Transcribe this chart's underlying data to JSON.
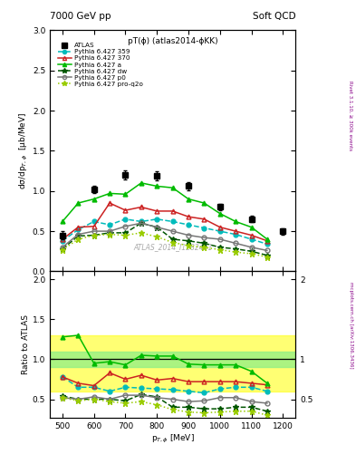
{
  "title_top_left": "7000 GeV pp",
  "title_top_right": "Soft QCD",
  "plot_title": "pT(ϕ) (atlas2014-ϕKK)",
  "watermark": "ATLAS_2014_I1282441",
  "right_label_top": "Rivet 3.1.10, ≥ 300k events",
  "right_label_bot": "mcplots.cern.ch [arXiv:1306.3436]",
  "ylabel_main": "dσ/dp$_{T,ϕ}$  [μb/MeV]",
  "ylabel_ratio": "Ratio to ATLAS",
  "xlabel": "p$_{T,ϕ}$ [MeV]",
  "atlas_x": [
    500,
    600,
    700,
    800,
    900,
    1000,
    1100,
    1200
  ],
  "atlas_y": [
    0.45,
    1.02,
    1.2,
    1.19,
    1.06,
    0.8,
    0.65,
    0.5
  ],
  "atlas_yerr": [
    0.05,
    0.05,
    0.06,
    0.06,
    0.05,
    0.04,
    0.04,
    0.04
  ],
  "p359_x": [
    500,
    550,
    600,
    650,
    700,
    750,
    800,
    850,
    900,
    950,
    1000,
    1050,
    1100,
    1150
  ],
  "p359_y": [
    0.38,
    0.52,
    0.62,
    0.58,
    0.65,
    0.62,
    0.65,
    0.62,
    0.58,
    0.54,
    0.5,
    0.46,
    0.4,
    0.34
  ],
  "p370_x": [
    500,
    550,
    600,
    650,
    700,
    750,
    800,
    850,
    900,
    950,
    1000,
    1050,
    1100,
    1150
  ],
  "p370_y": [
    0.4,
    0.55,
    0.56,
    0.85,
    0.76,
    0.8,
    0.75,
    0.75,
    0.68,
    0.65,
    0.55,
    0.5,
    0.45,
    0.38
  ],
  "pa_x": [
    500,
    550,
    600,
    650,
    700,
    750,
    800,
    850,
    900,
    950,
    1000,
    1050,
    1100,
    1150
  ],
  "pa_y": [
    0.62,
    0.85,
    0.9,
    0.97,
    0.96,
    1.1,
    1.06,
    1.04,
    0.9,
    0.85,
    0.72,
    0.62,
    0.55,
    0.4
  ],
  "pdw_x": [
    500,
    550,
    600,
    650,
    700,
    750,
    800,
    850,
    900,
    950,
    1000,
    1050,
    1100,
    1150
  ],
  "pdw_y": [
    0.28,
    0.44,
    0.45,
    0.48,
    0.48,
    0.6,
    0.55,
    0.4,
    0.38,
    0.35,
    0.3,
    0.28,
    0.25,
    0.2
  ],
  "pp0_x": [
    500,
    550,
    600,
    650,
    700,
    750,
    800,
    850,
    900,
    950,
    1000,
    1050,
    1100,
    1150
  ],
  "pp0_y": [
    0.3,
    0.46,
    0.5,
    0.5,
    0.56,
    0.6,
    0.55,
    0.5,
    0.45,
    0.42,
    0.4,
    0.35,
    0.3,
    0.26
  ],
  "pq2o_x": [
    500,
    550,
    600,
    650,
    700,
    750,
    800,
    850,
    900,
    950,
    1000,
    1050,
    1100,
    1150
  ],
  "pq2o_y": [
    0.27,
    0.4,
    0.45,
    0.46,
    0.45,
    0.48,
    0.43,
    0.36,
    0.32,
    0.3,
    0.27,
    0.24,
    0.22,
    0.18
  ],
  "ratio359": [
    0.78,
    0.65,
    0.65,
    0.6,
    0.65,
    0.64,
    0.63,
    0.62,
    0.6,
    0.58,
    0.63,
    0.65,
    0.65,
    0.6
  ],
  "ratio370": [
    0.78,
    0.7,
    0.67,
    0.83,
    0.75,
    0.8,
    0.74,
    0.76,
    0.72,
    0.72,
    0.72,
    0.72,
    0.7,
    0.68
  ],
  "ratioa": [
    1.28,
    1.3,
    0.95,
    0.97,
    0.93,
    1.05,
    1.04,
    1.04,
    0.94,
    0.93,
    0.93,
    0.93,
    0.85,
    0.7
  ],
  "ratiodw": [
    0.54,
    0.5,
    0.5,
    0.5,
    0.48,
    0.56,
    0.53,
    0.4,
    0.4,
    0.38,
    0.38,
    0.4,
    0.4,
    0.35
  ],
  "ratiop0": [
    0.52,
    0.5,
    0.53,
    0.5,
    0.55,
    0.55,
    0.52,
    0.5,
    0.47,
    0.48,
    0.52,
    0.52,
    0.47,
    0.45
  ],
  "ratioq2o": [
    0.52,
    0.48,
    0.5,
    0.47,
    0.45,
    0.47,
    0.43,
    0.37,
    0.34,
    0.33,
    0.34,
    0.35,
    0.35,
    0.3
  ],
  "color_359": "#00bbbb",
  "color_370": "#cc2222",
  "color_a": "#00bb00",
  "color_dw": "#005500",
  "color_p0": "#777777",
  "color_q2o": "#99cc00",
  "ylim_main": [
    0.0,
    3.0
  ],
  "xlim": [
    460,
    1240
  ],
  "band_green_lo": 0.9,
  "band_green_hi": 1.1,
  "band_yellow_lo": 0.6,
  "band_yellow_hi": 1.3,
  "bg": "#ffffff"
}
